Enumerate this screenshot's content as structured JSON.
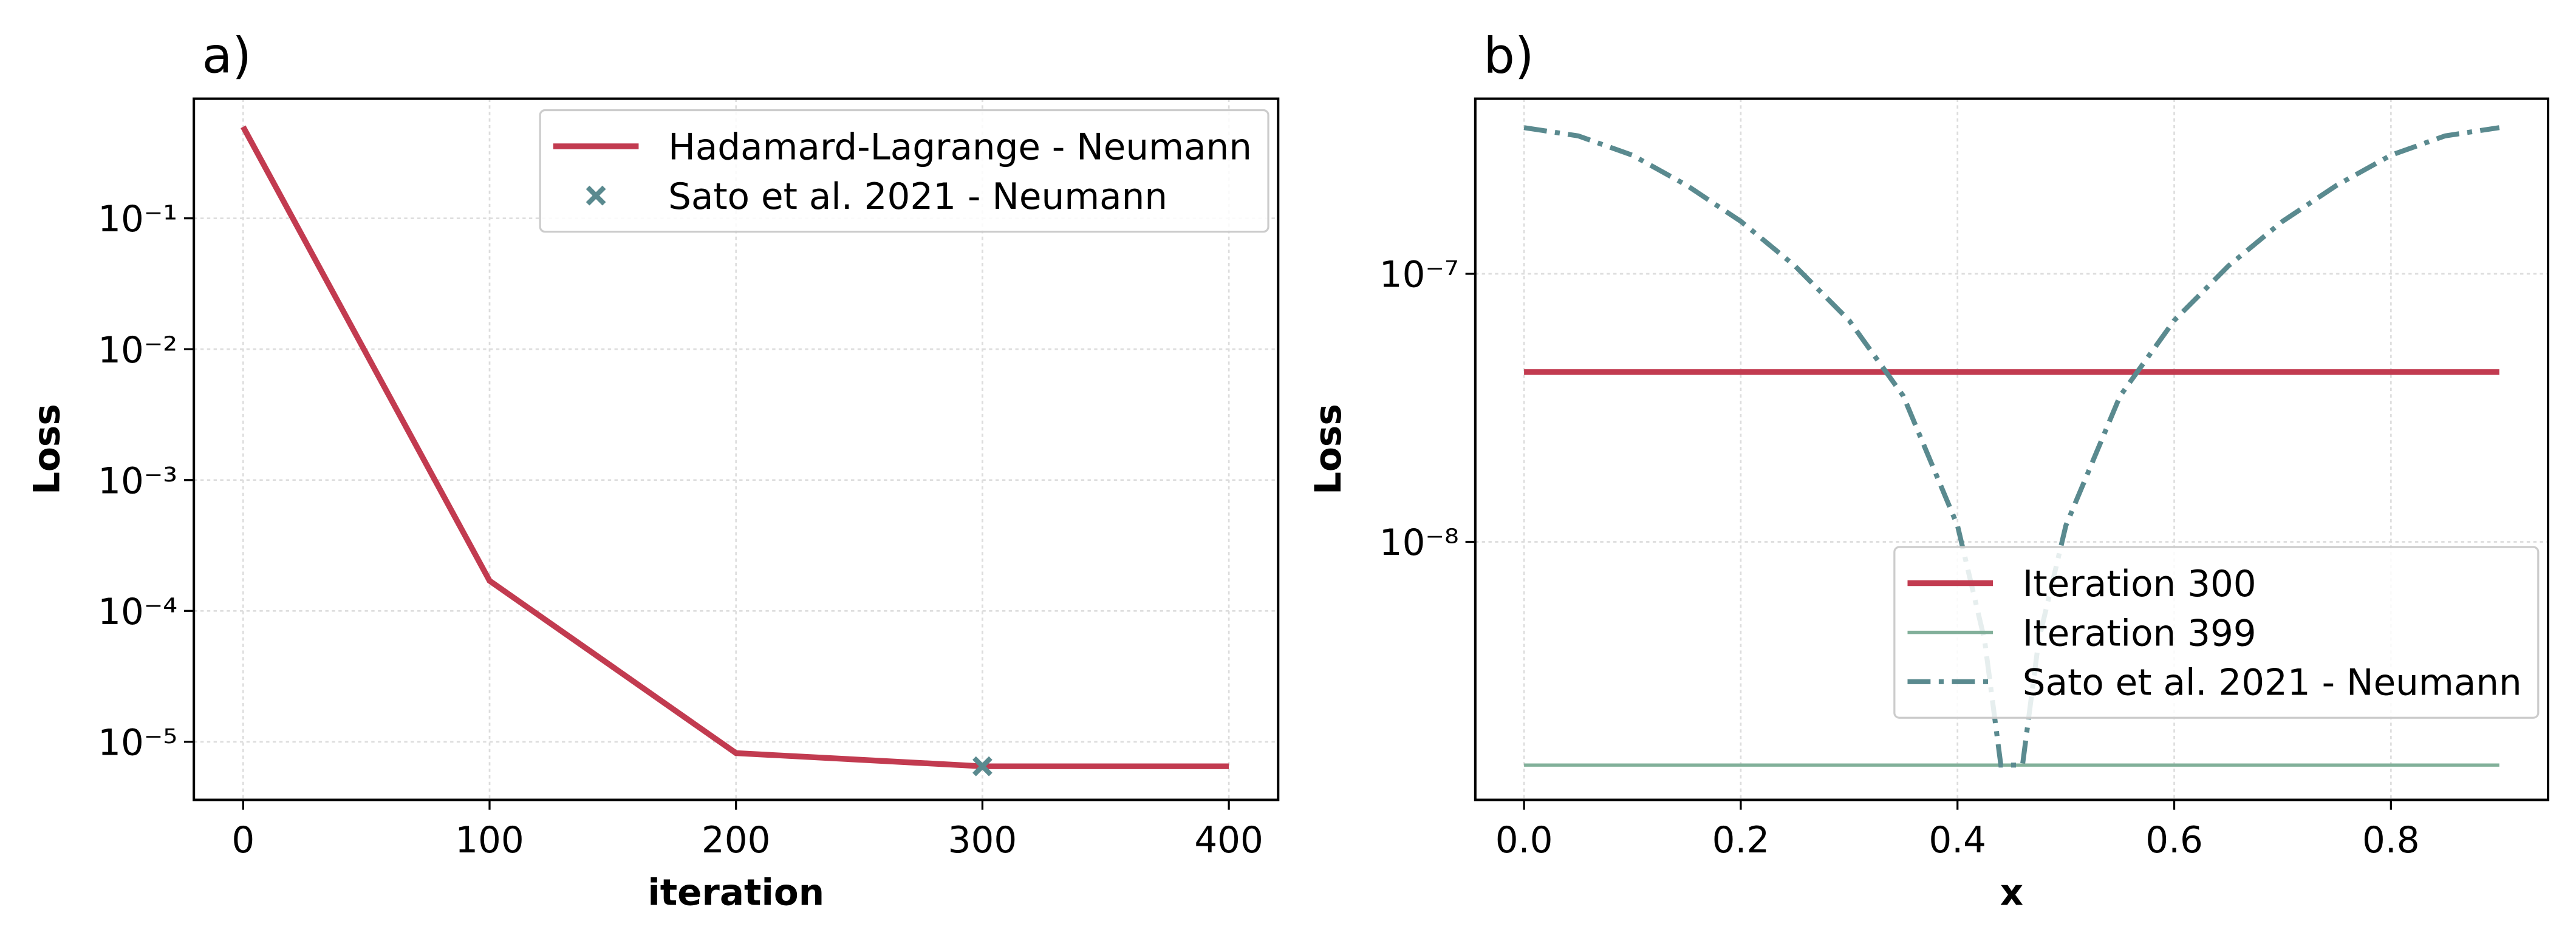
{
  "chart_data": [
    {
      "type": "line",
      "title": "a)",
      "xlabel": "iteration",
      "ylabel": "Loss",
      "xlim": [
        -20,
        420
      ],
      "xticks": [
        0,
        100,
        200,
        300,
        400
      ],
      "ylim": [
        3.6e-06,
        0.82
      ],
      "ylog": true,
      "yticks": [
        {
          "value": 0.1,
          "label": "10⁻¹"
        },
        {
          "value": 0.01,
          "label": "10⁻²"
        },
        {
          "value": 0.001,
          "label": "10⁻³"
        },
        {
          "value": 0.0001,
          "label": "10⁻⁴"
        },
        {
          "value": 1e-05,
          "label": "10⁻⁵"
        }
      ],
      "grid": true,
      "legend": "upper right",
      "series": [
        {
          "name": "Hadamard-Lagrange - Neumann",
          "color": "#c23b50",
          "linestyle": "solid",
          "linewidth": 3.5,
          "x": [
            0,
            100,
            200,
            300,
            400
          ],
          "values": [
            0.5,
            0.00017,
            8.2e-06,
            6.5e-06,
            6.5e-06
          ]
        },
        {
          "name": "Sato et al. 2021 - Neumann",
          "color": "#5a8a8f",
          "linestyle": "none",
          "marker": "x",
          "x": [
            300
          ],
          "values": [
            6.5e-06
          ]
        }
      ]
    },
    {
      "type": "line",
      "title": "b)",
      "xlabel": "x",
      "ylabel": "Loss",
      "xlim": [
        -0.045,
        0.945
      ],
      "xticks": [
        {
          "value": 0,
          "label": "0.0"
        },
        0.2,
        0.4,
        0.6,
        0.8
      ],
      "ylim": [
        1.09e-09,
        4.5e-07
      ],
      "ylog": true,
      "yticks": [
        {
          "value": 1e-07,
          "label": "10⁻⁷"
        },
        {
          "value": 1e-08,
          "label": "10⁻⁸"
        }
      ],
      "grid": true,
      "legend": "lower right",
      "series": [
        {
          "name": "Iteration 300",
          "color": "#c23b50",
          "linestyle": "solid",
          "linewidth": 3.5,
          "x": [
            0,
            0.9
          ],
          "values": [
            4.3e-08,
            4.3e-08
          ]
        },
        {
          "name": "Iteration 399",
          "color": "#82b09a",
          "linestyle": "solid",
          "linewidth": 2,
          "x": [
            0,
            0.9
          ],
          "values": [
            1.47e-09,
            1.47e-09
          ]
        },
        {
          "name": "Sato et al. 2021 - Neumann",
          "color": "#5a8a8f",
          "linestyle": "dashdot",
          "linewidth": 3,
          "x": [
            0,
            0.05,
            0.1,
            0.15,
            0.2,
            0.25,
            0.3,
            0.35,
            0.4,
            0.425,
            0.44,
            0.46,
            0.475,
            0.5,
            0.55,
            0.6,
            0.65,
            0.7,
            0.75,
            0.8,
            0.85,
            0.9
          ],
          "values": [
            3.51e-07,
            3.27e-07,
            2.77e-07,
            2.14e-07,
            1.57e-07,
            1.07e-07,
            6.7e-08,
            3.5e-08,
            1.15e-08,
            4.3e-09,
            1.47e-09,
            1.47e-09,
            4.3e-09,
            1.15e-08,
            3.5e-08,
            6.7e-08,
            1.07e-07,
            1.57e-07,
            2.14e-07,
            2.77e-07,
            3.27e-07,
            3.51e-07
          ]
        }
      ]
    }
  ]
}
